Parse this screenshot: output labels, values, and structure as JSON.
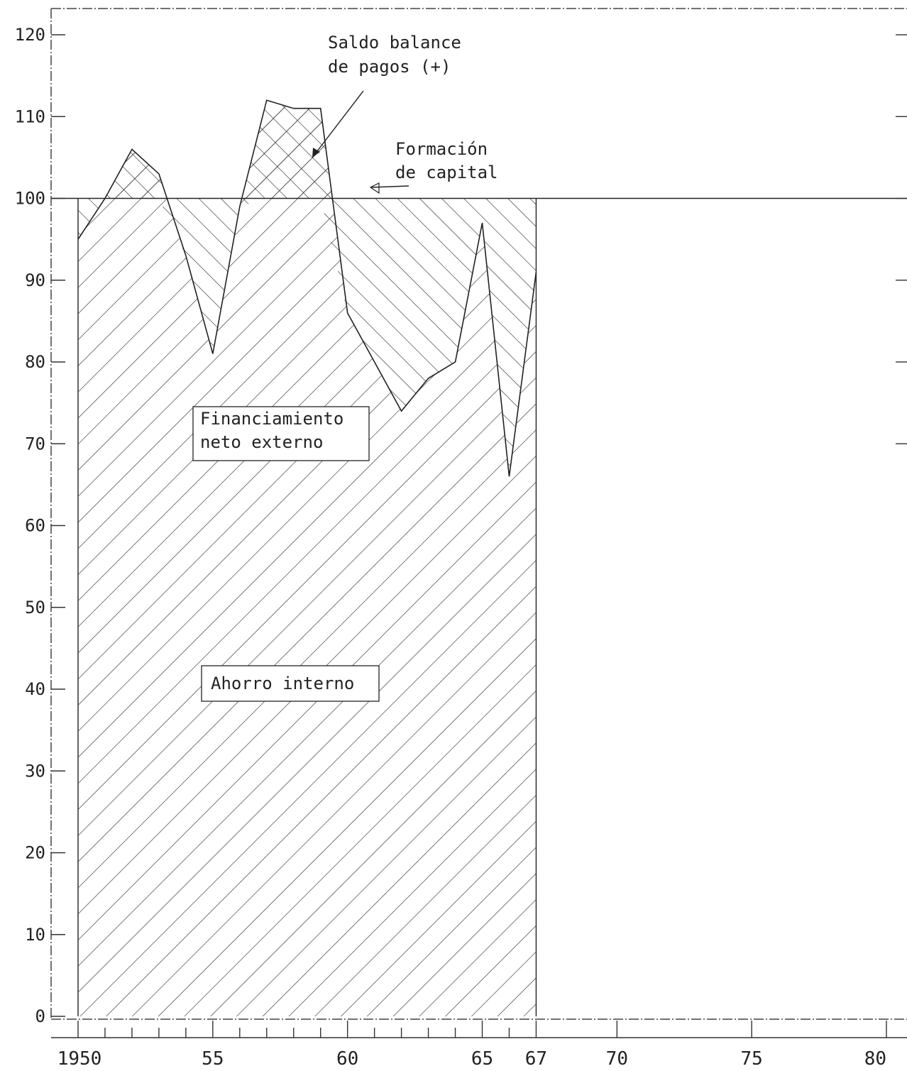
{
  "chart_data": {
    "type": "area",
    "title": "",
    "xlabel": "",
    "ylabel": "",
    "xlim": [
      1950,
      1980
    ],
    "ylim": [
      0,
      120
    ],
    "grid": false,
    "x": [
      1950,
      1951,
      1952,
      1953,
      1954,
      1955,
      1956,
      1957,
      1958,
      1959,
      1960,
      1961,
      1962,
      1963,
      1964,
      1965,
      1966,
      1967
    ],
    "series": [
      {
        "name": "Ahorro interno",
        "values": [
          95,
          100,
          106,
          103,
          93,
          81,
          99,
          112,
          111,
          111,
          86,
          80,
          74,
          78,
          80,
          97,
          66,
          91
        ]
      },
      {
        "name": "Formación de capital",
        "values": [
          100,
          100,
          100,
          100,
          100,
          100,
          100,
          100,
          100,
          100,
          100,
          100,
          100,
          100,
          100,
          100,
          100,
          100
        ]
      }
    ],
    "y_ticks": [
      "0",
      "10",
      "20",
      "30",
      "40",
      "50",
      "60",
      "70",
      "80",
      "90",
      "100",
      "110",
      "120"
    ],
    "x_ticks": [
      {
        "year": 1950,
        "label": "1950"
      },
      {
        "year": 1955,
        "label": "55"
      },
      {
        "year": 1960,
        "label": "60"
      },
      {
        "year": 1965,
        "label": "65"
      },
      {
        "year": 1967,
        "label": "67"
      },
      {
        "year": 1970,
        "label": "70"
      },
      {
        "year": 1975,
        "label": "75"
      },
      {
        "year": 1980,
        "label": "80"
      }
    ],
    "annotations": {
      "saldo_line1": "Saldo balance",
      "saldo_line2": "de pagos (+)",
      "formacion_line1": "Formación",
      "formacion_line2": "de capital",
      "financiamiento_line1": "Financiamiento",
      "financiamiento_line2": "neto externo",
      "ahorro": "Ahorro interno"
    }
  }
}
